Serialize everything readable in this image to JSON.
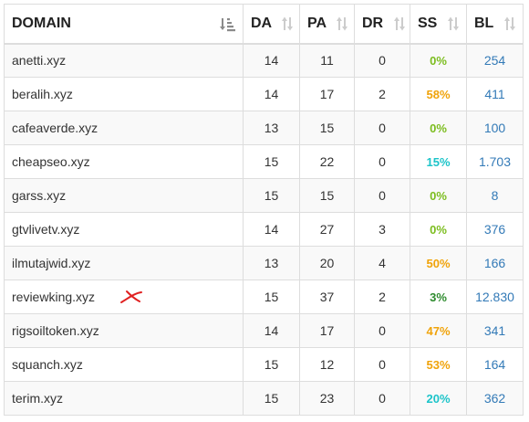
{
  "columns": {
    "domain": "DOMAIN",
    "da": "DA",
    "pa": "PA",
    "dr": "DR",
    "ss": "SS",
    "bl": "BL"
  },
  "rows": [
    {
      "domain": "anetti.xyz",
      "da": "14",
      "pa": "11",
      "dr": "0",
      "ss": "0%",
      "ss_color": "#7cbd1f",
      "bl": "254"
    },
    {
      "domain": "beralih.xyz",
      "da": "14",
      "pa": "17",
      "dr": "2",
      "ss": "58%",
      "ss_color": "#f0a30a",
      "bl": "411"
    },
    {
      "domain": "cafeaverde.xyz",
      "da": "13",
      "pa": "15",
      "dr": "0",
      "ss": "0%",
      "ss_color": "#7cbd1f",
      "bl": "100"
    },
    {
      "domain": "cheapseo.xyz",
      "da": "15",
      "pa": "22",
      "dr": "0",
      "ss": "15%",
      "ss_color": "#1cc4c9",
      "bl": "1.703"
    },
    {
      "domain": "garss.xyz",
      "da": "15",
      "pa": "15",
      "dr": "0",
      "ss": "0%",
      "ss_color": "#7cbd1f",
      "bl": "8"
    },
    {
      "domain": "gtvlivetv.xyz",
      "da": "14",
      "pa": "27",
      "dr": "3",
      "ss": "0%",
      "ss_color": "#7cbd1f",
      "bl": "376"
    },
    {
      "domain": "ilmutajwid.xyz",
      "da": "13",
      "pa": "20",
      "dr": "4",
      "ss": "50%",
      "ss_color": "#f0a30a",
      "bl": "166"
    },
    {
      "domain": "reviewking.xyz",
      "da": "15",
      "pa": "37",
      "dr": "2",
      "ss": "3%",
      "ss_color": "#2e8b2e",
      "bl": "12.830",
      "marked": true
    },
    {
      "domain": "rigsoiltoken.xyz",
      "da": "14",
      "pa": "17",
      "dr": "0",
      "ss": "47%",
      "ss_color": "#f0a30a",
      "bl": "341"
    },
    {
      "domain": "squanch.xyz",
      "da": "15",
      "pa": "12",
      "dr": "0",
      "ss": "53%",
      "ss_color": "#f0a30a",
      "bl": "164"
    },
    {
      "domain": "terim.xyz",
      "da": "15",
      "pa": "23",
      "dr": "0",
      "ss": "20%",
      "ss_color": "#1cc4c9",
      "bl": "362"
    }
  ],
  "icons": {
    "domain_sort": "sort-amount-down-icon",
    "column_sort": "sort-arrows-icon",
    "annotation": "red-x-mark"
  },
  "colors": {
    "link": "#337ab7",
    "border": "#dddddd",
    "stripe": "#f9f9f9",
    "annotation": "#e02020"
  }
}
